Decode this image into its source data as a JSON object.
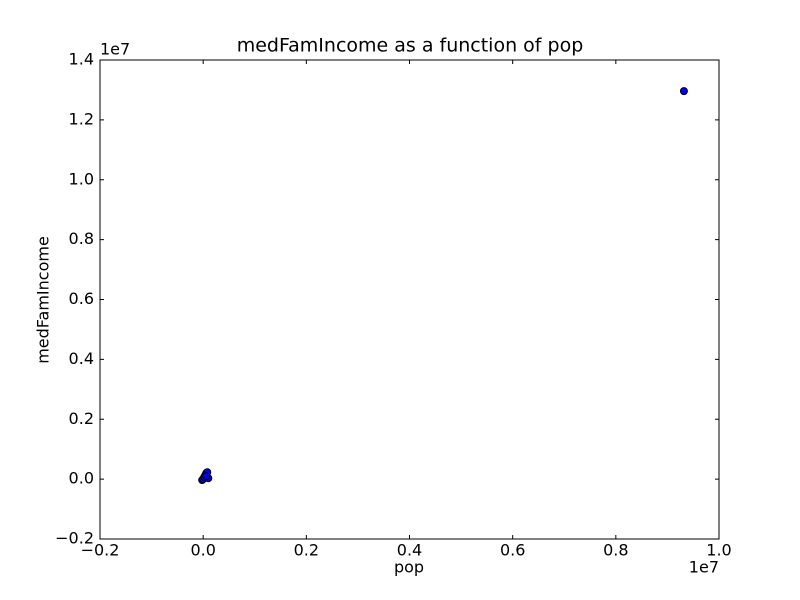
{
  "chart_data": {
    "type": "scatter",
    "title": "medFamIncome as a function of pop",
    "xlabel": "pop",
    "ylabel": "medFamIncome",
    "x_offset_label": "1e7",
    "y_offset_label": "1e7",
    "x": [
      -0.002,
      0,
      0.002,
      0.004,
      0.006,
      0.008,
      0.01,
      0.006,
      0.932
    ],
    "y": [
      -0.003,
      0,
      0.007,
      0.013,
      0.02,
      0.023,
      0.003,
      0.01,
      1.296
    ],
    "color": "#0000ff",
    "edgecolor": "#000000",
    "xlim": [
      -0.2,
      1.0
    ],
    "ylim": [
      -0.2,
      1.4
    ],
    "xticks": [
      {
        "value": -0.2,
        "label": "−0.2"
      },
      {
        "value": 0,
        "label": "0.0"
      },
      0.2,
      0.4,
      0.6,
      0.8,
      {
        "value": 1.0,
        "label": "1.0"
      }
    ],
    "yticks": [
      {
        "value": -0.2,
        "label": "−0.2"
      },
      {
        "value": 0,
        "label": "0.0"
      },
      0.2,
      0.4,
      0.6,
      0.8,
      {
        "value": 1.0,
        "label": "1.0"
      },
      1.2,
      1.4
    ],
    "grid": false
  }
}
